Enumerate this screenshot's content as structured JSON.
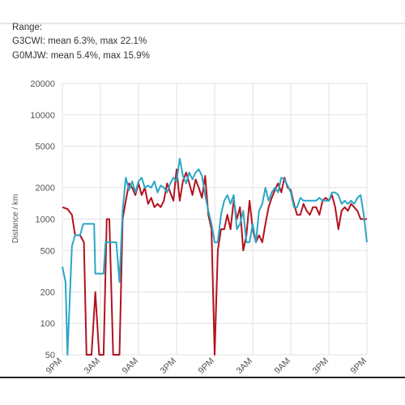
{
  "chart_data": {
    "type": "line",
    "header": [
      "Range:",
      "G3CWI: mean 6.3%, max 22.1%",
      "G0MJW: mean 5.4%, max 15.9%"
    ],
    "ylabel": "Distance / km",
    "log_y": true,
    "grid": true,
    "ylim": [
      50,
      20000
    ],
    "yticks": [
      50,
      100,
      200,
      500,
      1000,
      2000,
      5000,
      10000,
      20000
    ],
    "xlim": [
      0,
      48
    ],
    "xticks": [
      {
        "value": 0,
        "label": "9PM"
      },
      {
        "value": 6,
        "label": "3AM"
      },
      {
        "value": 12,
        "label": "9AM"
      },
      {
        "value": 18,
        "label": "3PM"
      },
      {
        "value": 24,
        "label": "9PM"
      },
      {
        "value": 30,
        "label": "3AM"
      },
      {
        "value": 36,
        "label": "9AM"
      },
      {
        "value": 42,
        "label": "3PM"
      },
      {
        "value": 48,
        "label": "9PM"
      }
    ],
    "series": [
      {
        "color": "#b3121d",
        "x": [
          0,
          0.8,
          1.5,
          2,
          2.8,
          3.4,
          3.8,
          4.6,
          5.2,
          5.8,
          6.5,
          7,
          7.4,
          8,
          9,
          9.5,
          10,
          10.5,
          11,
          11.5,
          12,
          12.5,
          13,
          13.5,
          14,
          14.5,
          15,
          15.5,
          16,
          16.5,
          17,
          17.5,
          18,
          18.5,
          19,
          19.5,
          20,
          20.5,
          21,
          21.5,
          22,
          22.5,
          23,
          23.5,
          24,
          24.5,
          25,
          25.5,
          26,
          26.5,
          27,
          27.5,
          28,
          28.5,
          29,
          29.5,
          30,
          30.5,
          31,
          31.5,
          32,
          32.5,
          33,
          33.5,
          34,
          34.5,
          35,
          35.5,
          36,
          36.5,
          37,
          37.5,
          38,
          38.5,
          39,
          39.5,
          40,
          40.5,
          41,
          41.5,
          42,
          42.5,
          43,
          43.5,
          44,
          44.5,
          45,
          45.5,
          46,
          46.5,
          47,
          48
        ],
        "values": [
          1300,
          1250,
          1100,
          700,
          700,
          600,
          50,
          50,
          200,
          50,
          50,
          1000,
          1000,
          50,
          50,
          1000,
          1500,
          2200,
          2000,
          1700,
          2200,
          1700,
          2000,
          1400,
          1600,
          1300,
          1400,
          1300,
          1500,
          2200,
          1800,
          1500,
          3000,
          1500,
          2300,
          2800,
          2200,
          1700,
          2400,
          2000,
          1600,
          2600,
          1100,
          800,
          50,
          500,
          800,
          800,
          1100,
          800,
          1500,
          1000,
          1300,
          500,
          700,
          1500,
          800,
          600,
          700,
          600,
          900,
          1300,
          1600,
          1900,
          2200,
          1800,
          2500,
          2000,
          1900,
          1400,
          1100,
          1100,
          1400,
          1200,
          1100,
          1300,
          1300,
          1100,
          1500,
          1600,
          1500,
          1700,
          1300,
          800,
          1200,
          1300,
          1200,
          1400,
          1300,
          1200,
          1000,
          1000
        ]
      },
      {
        "color": "#2ba6c6",
        "x": [
          0,
          0.5,
          0.8,
          1.5,
          2,
          2.8,
          3.3,
          4,
          5,
          5.2,
          6,
          6.5,
          6.8,
          7.5,
          8.5,
          9,
          9.5,
          10,
          10.5,
          11,
          11.5,
          12,
          12.5,
          13,
          13.5,
          14,
          14.5,
          15,
          15.5,
          16,
          16.5,
          17,
          17.5,
          18,
          18.5,
          19,
          19.5,
          20,
          20.5,
          21,
          21.5,
          22,
          22.5,
          23,
          23.5,
          24,
          24.5,
          25,
          25.5,
          26,
          26.5,
          27,
          27.5,
          28,
          28.5,
          29,
          29.5,
          30,
          30.5,
          31,
          31.5,
          32,
          32.5,
          33,
          33.5,
          34,
          34.5,
          35,
          35.5,
          36,
          36.5,
          37,
          37.5,
          38,
          39,
          40,
          40.5,
          41,
          42,
          42.5,
          43,
          43.5,
          44,
          44.5,
          45,
          45.5,
          46,
          46.5,
          47,
          47.5,
          48
        ],
        "values": [
          350,
          250,
          50,
          550,
          700,
          700,
          900,
          900,
          900,
          300,
          300,
          300,
          600,
          600,
          600,
          250,
          1200,
          2500,
          1900,
          2300,
          1800,
          2300,
          2500,
          2000,
          2100,
          2000,
          2300,
          1800,
          2100,
          2000,
          1800,
          2200,
          2500,
          2300,
          3800,
          2600,
          2200,
          2800,
          2400,
          2800,
          3000,
          2600,
          1700,
          1200,
          900,
          600,
          600,
          1100,
          1500,
          1700,
          1400,
          1700,
          800,
          900,
          1200,
          600,
          600,
          900,
          600,
          1200,
          1400,
          2000,
          1500,
          1800,
          2000,
          1800,
          2500,
          2400,
          2100,
          1800,
          1300,
          1300,
          1600,
          1500,
          1500,
          1500,
          1600,
          1500,
          1500,
          1800,
          1800,
          1700,
          1400,
          1500,
          1400,
          1500,
          1400,
          1600,
          1700,
          1100,
          600
        ]
      }
    ]
  }
}
